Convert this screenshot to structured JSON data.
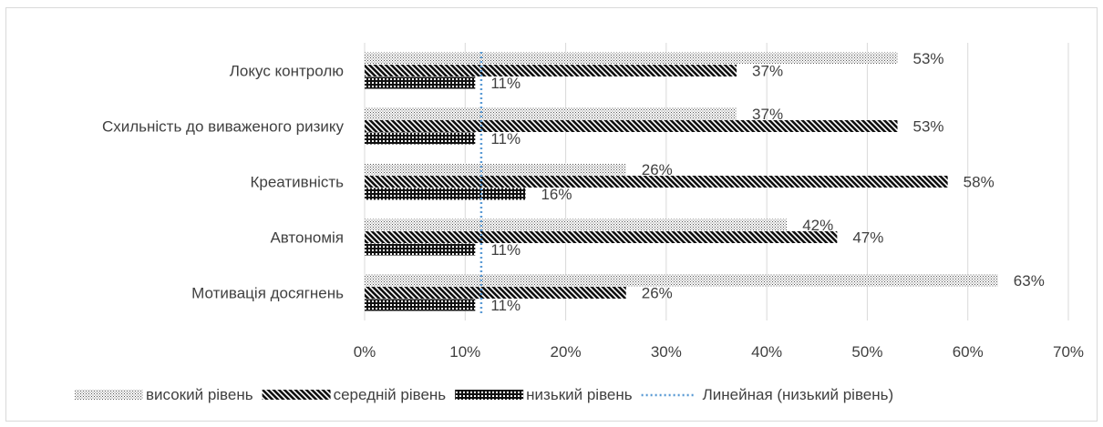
{
  "chart_data": {
    "type": "bar",
    "orientation": "horizontal",
    "categories": [
      "Локус контролю",
      "Схильність до  виваженого ризику",
      "Креативність",
      "Автономія",
      "Мотивація досягнень"
    ],
    "series": [
      {
        "name": "високий рівень",
        "values": [
          53,
          37,
          26,
          42,
          63
        ],
        "labels": [
          "53%",
          "37%",
          "26%",
          "42%",
          "63%"
        ],
        "pattern": "dots"
      },
      {
        "name": "середній рівень",
        "values": [
          37,
          53,
          58,
          47,
          26
        ],
        "labels": [
          "37%",
          "53%",
          "58%",
          "47%",
          "26%"
        ],
        "pattern": "diagonal"
      },
      {
        "name": "низький рівень",
        "values": [
          11,
          11,
          16,
          11,
          11
        ],
        "labels": [
          "11%",
          "11%",
          "16%",
          "11%",
          "11%"
        ],
        "pattern": "grid"
      }
    ],
    "trendline": {
      "name": "Линейная (низький рівень)",
      "of_series": "низький рівень",
      "value": 11.6,
      "color": "#5b9bd5"
    },
    "xlim": [
      0,
      70
    ],
    "xticks": [
      "0%",
      "10%",
      "20%",
      "30%",
      "40%",
      "50%",
      "60%",
      "70%"
    ],
    "grid": true,
    "legend_position": "bottom"
  }
}
